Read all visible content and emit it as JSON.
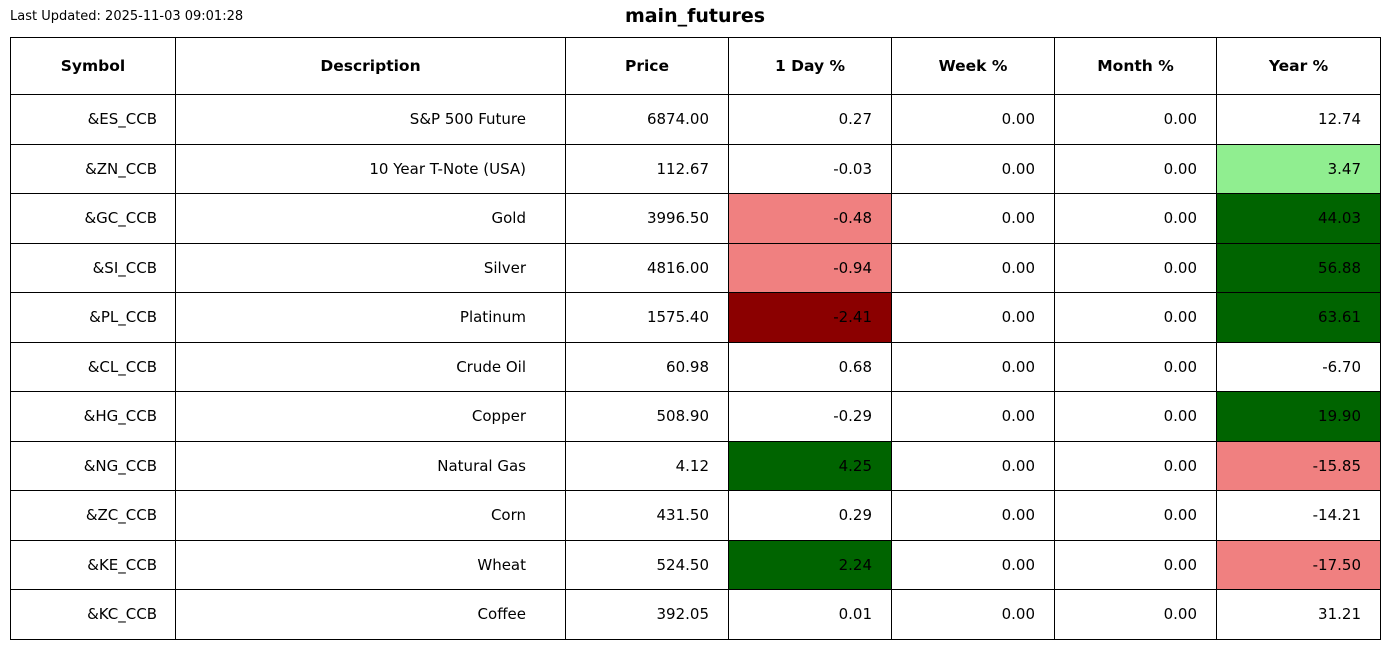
{
  "header": {
    "last_updated": "Last Updated: 2025-11-03 09:01:28",
    "title": "main_futures"
  },
  "colors": {
    "light_green": "#90ee90",
    "dark_green": "#006400",
    "light_red": "#f08080",
    "dark_red": "#8b0000"
  },
  "chart_data": {
    "type": "table",
    "title": "main_futures",
    "columns": [
      "Symbol",
      "Description",
      "Price",
      "1 Day %",
      "Week %",
      "Month %",
      "Year %"
    ],
    "rows": [
      {
        "values": [
          "&ES_CCB",
          "S&P 500 Future",
          "6874.00",
          "0.27",
          "0.00",
          "0.00",
          "12.74"
        ],
        "bg": [
          null,
          null,
          null,
          null,
          null,
          null,
          null
        ]
      },
      {
        "values": [
          "&ZN_CCB",
          "10 Year T-Note (USA)",
          "112.67",
          "-0.03",
          "0.00",
          "0.00",
          "3.47"
        ],
        "bg": [
          null,
          null,
          null,
          null,
          null,
          null,
          "light_green"
        ]
      },
      {
        "values": [
          "&GC_CCB",
          "Gold",
          "3996.50",
          "-0.48",
          "0.00",
          "0.00",
          "44.03"
        ],
        "bg": [
          null,
          null,
          null,
          "light_red",
          null,
          null,
          "dark_green"
        ]
      },
      {
        "values": [
          "&SI_CCB",
          "Silver",
          "4816.00",
          "-0.94",
          "0.00",
          "0.00",
          "56.88"
        ],
        "bg": [
          null,
          null,
          null,
          "light_red",
          null,
          null,
          "dark_green"
        ]
      },
      {
        "values": [
          "&PL_CCB",
          "Platinum",
          "1575.40",
          "-2.41",
          "0.00",
          "0.00",
          "63.61"
        ],
        "bg": [
          null,
          null,
          null,
          "dark_red",
          null,
          null,
          "dark_green"
        ]
      },
      {
        "values": [
          "&CL_CCB",
          "Crude Oil",
          "60.98",
          "0.68",
          "0.00",
          "0.00",
          "-6.70"
        ],
        "bg": [
          null,
          null,
          null,
          null,
          null,
          null,
          null
        ]
      },
      {
        "values": [
          "&HG_CCB",
          "Copper",
          "508.90",
          "-0.29",
          "0.00",
          "0.00",
          "19.90"
        ],
        "bg": [
          null,
          null,
          null,
          null,
          null,
          null,
          "dark_green"
        ]
      },
      {
        "values": [
          "&NG_CCB",
          "Natural Gas",
          "4.12",
          "4.25",
          "0.00",
          "0.00",
          "-15.85"
        ],
        "bg": [
          null,
          null,
          null,
          "dark_green",
          null,
          null,
          "light_red"
        ]
      },
      {
        "values": [
          "&ZC_CCB",
          "Corn",
          "431.50",
          "0.29",
          "0.00",
          "0.00",
          "-14.21"
        ],
        "bg": [
          null,
          null,
          null,
          null,
          null,
          null,
          null
        ]
      },
      {
        "values": [
          "&KE_CCB",
          "Wheat",
          "524.50",
          "2.24",
          "0.00",
          "0.00",
          "-17.50"
        ],
        "bg": [
          null,
          null,
          null,
          "dark_green",
          null,
          null,
          "light_red"
        ]
      },
      {
        "values": [
          "&KC_CCB",
          "Coffee",
          "392.05",
          "0.01",
          "0.00",
          "0.00",
          "31.21"
        ],
        "bg": [
          null,
          null,
          null,
          null,
          null,
          null,
          null
        ]
      }
    ]
  }
}
